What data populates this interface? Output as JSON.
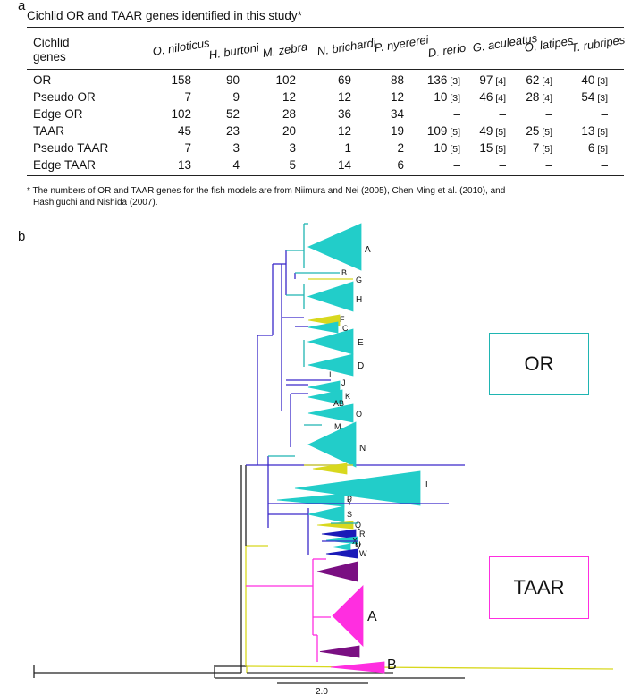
{
  "panel_a": {
    "letter": "a",
    "title": "Cichlid OR and TAAR genes identified in this study*",
    "row_header": [
      "Cichlid",
      "genes"
    ],
    "columns": [
      "O. niloticus",
      "H. burtoni",
      "M. zebra",
      "N. brichardi",
      "P. nyererei",
      "D. rerio",
      "G. aculeatus",
      "O. latipes",
      "T. rubripes"
    ],
    "rows": [
      {
        "label": "OR",
        "cells": [
          {
            "v": "158",
            "r": ""
          },
          {
            "v": "90",
            "r": ""
          },
          {
            "v": "102",
            "r": ""
          },
          {
            "v": "69",
            "r": ""
          },
          {
            "v": "88",
            "r": ""
          },
          {
            "v": "136",
            "r": "[3]"
          },
          {
            "v": "97",
            "r": "[4]"
          },
          {
            "v": "62",
            "r": "[4]"
          },
          {
            "v": "40",
            "r": "[3]"
          }
        ]
      },
      {
        "label": "Pseudo OR",
        "cells": [
          {
            "v": "7",
            "r": ""
          },
          {
            "v": "9",
            "r": ""
          },
          {
            "v": "12",
            "r": ""
          },
          {
            "v": "12",
            "r": ""
          },
          {
            "v": "12",
            "r": ""
          },
          {
            "v": "10",
            "r": "[3]"
          },
          {
            "v": "46",
            "r": "[4]"
          },
          {
            "v": "28",
            "r": "[4]"
          },
          {
            "v": "54",
            "r": "[3]"
          }
        ]
      },
      {
        "label": "Edge OR",
        "cells": [
          {
            "v": "102",
            "r": ""
          },
          {
            "v": "52",
            "r": ""
          },
          {
            "v": "28",
            "r": ""
          },
          {
            "v": "36",
            "r": ""
          },
          {
            "v": "34",
            "r": ""
          },
          {
            "v": "–",
            "r": ""
          },
          {
            "v": "–",
            "r": ""
          },
          {
            "v": "–",
            "r": ""
          },
          {
            "v": "–",
            "r": ""
          }
        ]
      },
      {
        "label": "TAAR",
        "cells": [
          {
            "v": "45",
            "r": ""
          },
          {
            "v": "23",
            "r": ""
          },
          {
            "v": "20",
            "r": ""
          },
          {
            "v": "12",
            "r": ""
          },
          {
            "v": "19",
            "r": ""
          },
          {
            "v": "109",
            "r": "[5]"
          },
          {
            "v": "49",
            "r": "[5]"
          },
          {
            "v": "25",
            "r": "[5]"
          },
          {
            "v": "13",
            "r": "[5]"
          }
        ]
      },
      {
        "label": "Pseudo TAAR",
        "cells": [
          {
            "v": "7",
            "r": ""
          },
          {
            "v": "3",
            "r": ""
          },
          {
            "v": "3",
            "r": ""
          },
          {
            "v": "1",
            "r": ""
          },
          {
            "v": "2",
            "r": ""
          },
          {
            "v": "10",
            "r": "[5]"
          },
          {
            "v": "15",
            "r": "[5]"
          },
          {
            "v": "7",
            "r": "[5]"
          },
          {
            "v": "6",
            "r": "[5]"
          }
        ]
      },
      {
        "label": "Edge TAAR",
        "cells": [
          {
            "v": "13",
            "r": ""
          },
          {
            "v": "4",
            "r": ""
          },
          {
            "v": "5",
            "r": ""
          },
          {
            "v": "14",
            "r": ""
          },
          {
            "v": "6",
            "r": ""
          },
          {
            "v": "–",
            "r": ""
          },
          {
            "v": "–",
            "r": ""
          },
          {
            "v": "–",
            "r": ""
          },
          {
            "v": "–",
            "r": ""
          }
        ]
      }
    ],
    "footnote_1": "* The numbers of OR and TAAR genes for the fish models are from Niimura and Nei (2005), Chen Ming et al. (2010), and",
    "footnote_2": "Hashiguchi and Nishida (2007)."
  },
  "panel_b": {
    "letter": "b",
    "or_legend": "OR",
    "taar_legend": "TAAR",
    "scale_label": "2.0",
    "colors": {
      "or": "#1fb5b2",
      "or_fill": "#22cdc9",
      "taar": "#ff2ee0",
      "taar_dark": "#7a0f82",
      "backbone": "#3a28c9",
      "yellow": "#d8d81e",
      "blue": "#1a1ab8"
    },
    "clade_labels": [
      "A",
      "B",
      "G",
      "H",
      "F",
      "C",
      "E",
      "D",
      "I",
      "J",
      "K",
      "AB",
      "O",
      "M",
      "N",
      "L",
      "P",
      "Y",
      "S",
      "Q",
      "R",
      "X",
      "U",
      "V",
      "W",
      "A",
      "B"
    ]
  }
}
